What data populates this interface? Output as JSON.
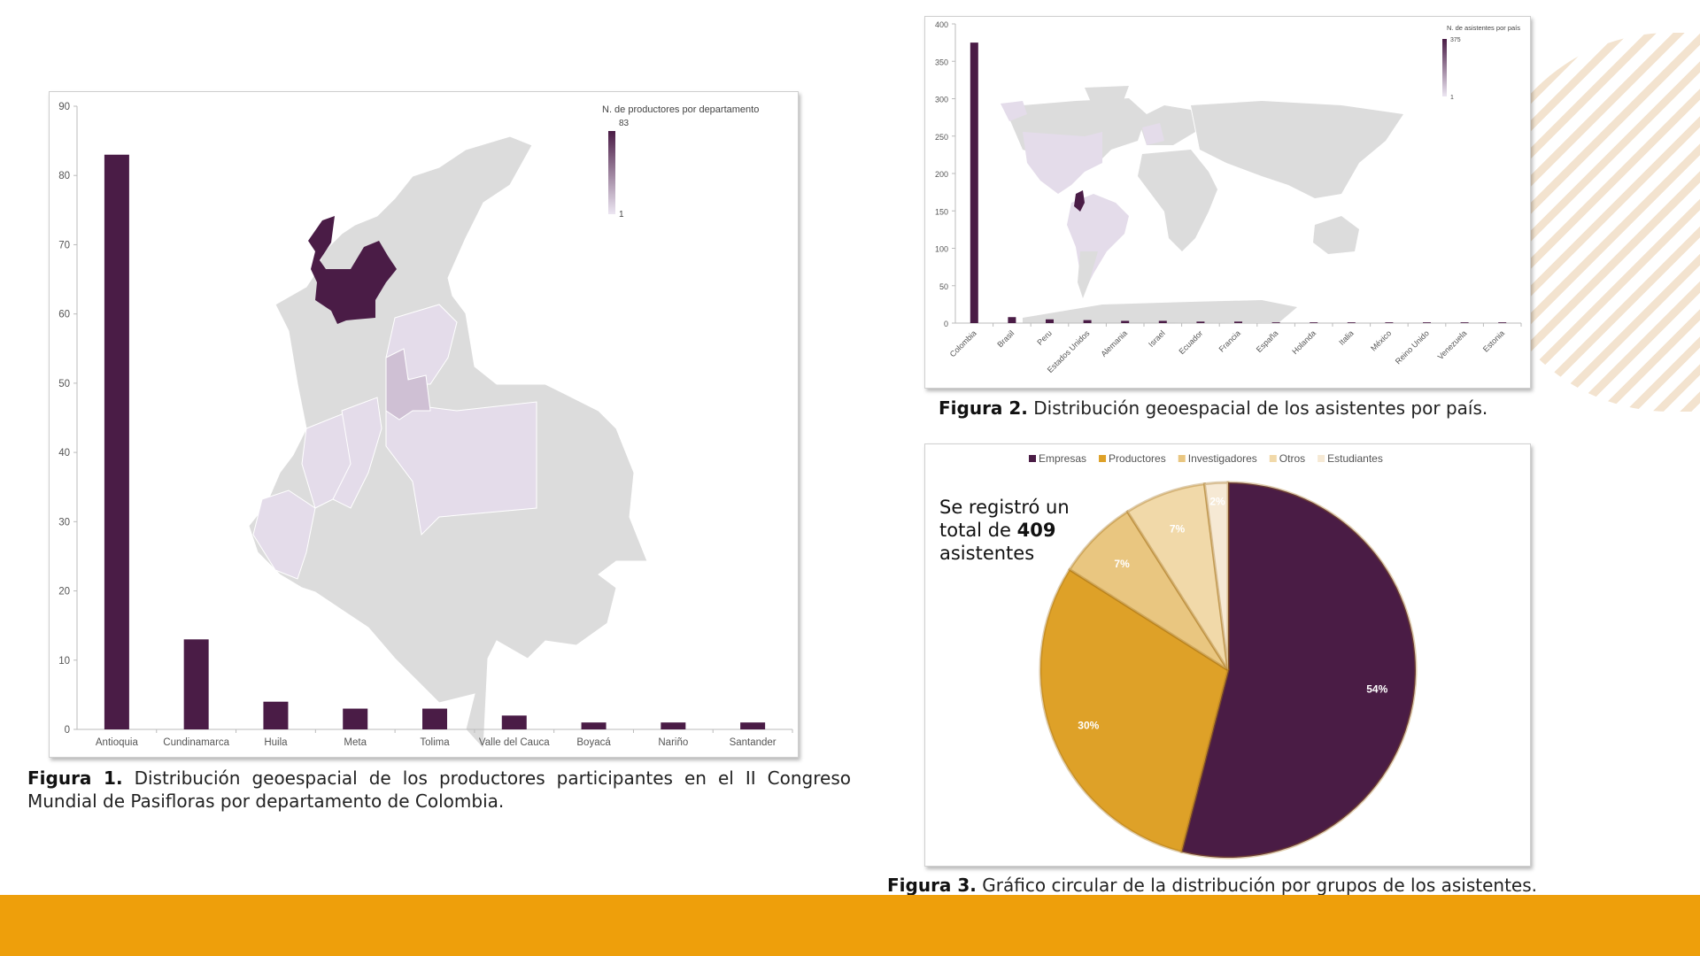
{
  "colors": {
    "dark": "#4a1c46",
    "light": "#e4dcea",
    "mid": "#cfc0d4",
    "map": "#dcdcdc",
    "orange": "#ee9f0b",
    "stripes": "#f3e3cf"
  },
  "figure1": {
    "caption_label": "Figura 1.",
    "caption_text": " Distribución geoespacial de los productores participantes en el II Congreso Mundial de Pasifloras por departamento de Colombia.",
    "legend_title": "N. de productores por departamento",
    "legend_max": "83",
    "legend_min": "1"
  },
  "figure2": {
    "caption_label": "Figura 2.",
    "caption_text": " Distribución geoespacial de los asistentes por país.",
    "legend_title": "N. de asistentes por país",
    "legend_max": "375",
    "legend_min": "1"
  },
  "figure3": {
    "caption_label": "Figura 3.",
    "caption_text": " Gráfico circular de la distribución por grupos de los asistentes.",
    "note_pre": "Se registró un total de ",
    "note_bold": "409",
    "note_post": " asistentes"
  },
  "chart_data": [
    {
      "type": "bar",
      "title": "",
      "xlabel": "",
      "ylabel": "",
      "categories": [
        "Antioquia",
        "Cundinamarca",
        "Huila",
        "Meta",
        "Tolima",
        "Valle del Cauca",
        "Boyacá",
        "Nariño",
        "Santander"
      ],
      "values": [
        83,
        13,
        4,
        3,
        3,
        2,
        1,
        1,
        1
      ],
      "ylim": [
        0,
        90
      ],
      "yticks": [
        0,
        10,
        20,
        30,
        40,
        50,
        60,
        70,
        80,
        90
      ],
      "grid": false
    },
    {
      "type": "bar",
      "title": "",
      "xlabel": "",
      "ylabel": "",
      "categories": [
        "Colombia",
        "Brasil",
        "Peru",
        "Estados Unidos",
        "Alemania",
        "Israel",
        "Ecuador",
        "Francia",
        "España",
        "Holanda",
        "Italia",
        "México",
        "Reino Unido",
        "Venezuela",
        "Estonia"
      ],
      "values": [
        375,
        8,
        5,
        4,
        3,
        3,
        2,
        2,
        1,
        1,
        1,
        1,
        1,
        1,
        1
      ],
      "ylim": [
        0,
        400
      ],
      "yticks": [
        0,
        50,
        100,
        150,
        200,
        250,
        300,
        350,
        400
      ],
      "grid": false
    },
    {
      "type": "pie",
      "title": "",
      "legend": "top",
      "labels": [
        "Empresas",
        "Productores",
        "Investigadores",
        "Otros",
        "Estudiantes"
      ],
      "values": [
        54,
        30,
        7,
        7,
        2
      ],
      "data_labels": [
        "54%",
        "30%",
        "7%",
        "7%",
        "2%"
      ],
      "colors": [
        "#4a1c45",
        "#dea128",
        "#e9c680",
        "#f1d9a9",
        "#f6e9d4"
      ]
    }
  ]
}
